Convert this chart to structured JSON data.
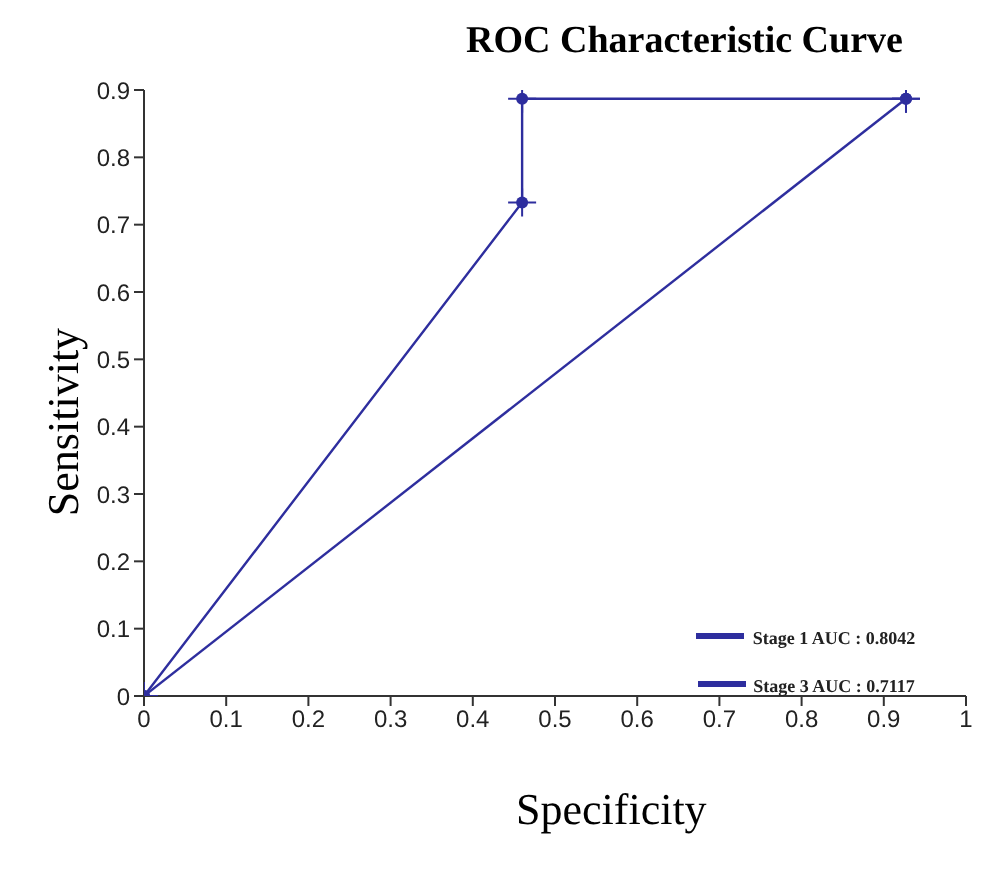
{
  "chart_data": {
    "type": "line",
    "title": "ROC Characteristic Curve",
    "xlabel": "Specificity",
    "ylabel": "Sensitivity",
    "series": [
      {
        "name": "Stage 1 AUC : 0.8042",
        "color": "#2e2e9e",
        "x": [
          0,
          0.46,
          0.46,
          0.927
        ],
        "values": [
          0,
          0.733,
          0.887,
          0.887
        ]
      },
      {
        "name": "Stage 3 AUC : 0.7117",
        "color": "#2e2e9e",
        "x": [
          0,
          0.927
        ],
        "values": [
          0,
          0.887
        ]
      }
    ],
    "xlim": [
      0,
      1
    ],
    "xticks": [
      0,
      0.1,
      0.2,
      0.3,
      0.4,
      0.5,
      0.6,
      0.7,
      0.8,
      0.9,
      1
    ],
    "ylim": [
      0,
      0.9
    ],
    "yticks": [
      0,
      0.1,
      0.2,
      0.3,
      0.4,
      0.5,
      0.6,
      0.7,
      0.8,
      0.9
    ],
    "grid": false,
    "legend": "bottom right",
    "marker": "circle",
    "line_style": "solid"
  }
}
